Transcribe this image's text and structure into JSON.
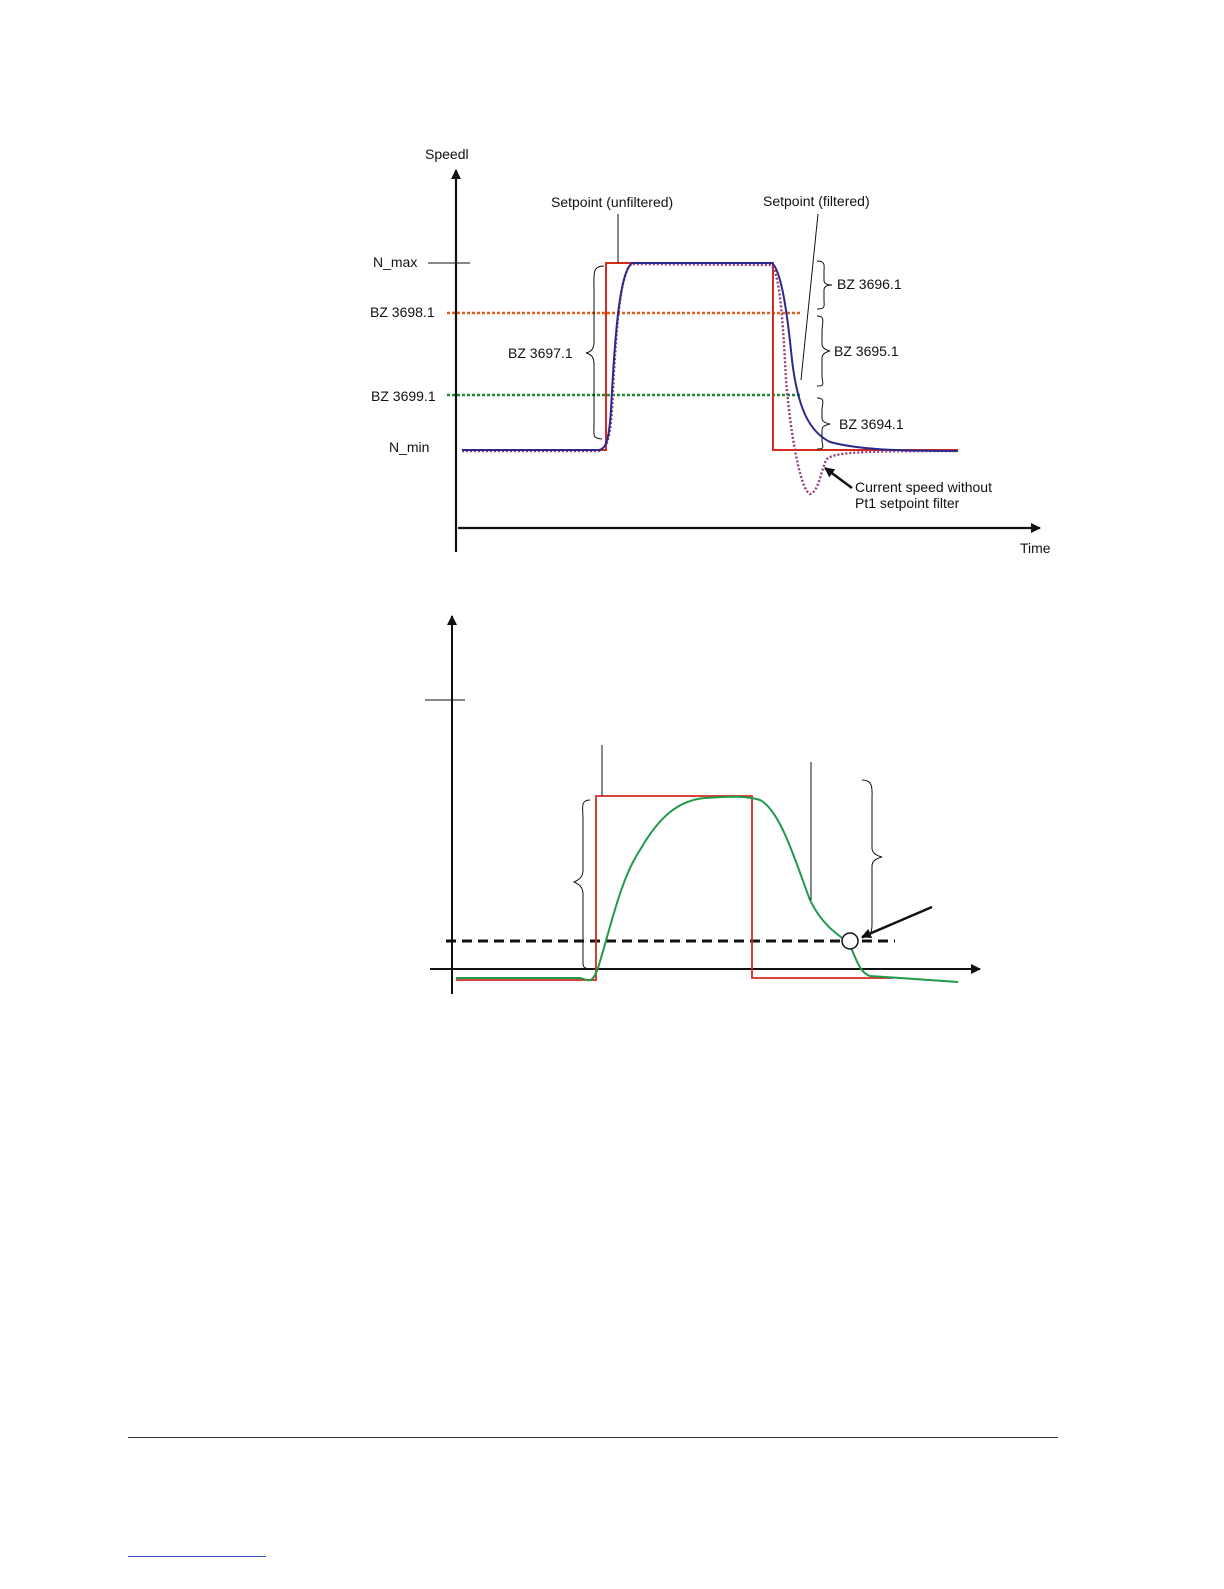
{
  "colors": {
    "axis": "#111111",
    "setpoint_unfiltered": "#d62a1e",
    "setpoint_filtered": "#2b2a8c",
    "speed_without_filter": "#9a3a7a",
    "bz3698_line": "#e0601a",
    "bz3699_line": "#1e8a3a",
    "speed_curve_lower": "#1f9a4a",
    "threshold_dashed": "#111111"
  },
  "upper_diagram": {
    "y_axis_label": "Speedl",
    "x_axis_label": "Time",
    "level_labels": {
      "n_max": "N_max",
      "n_min": "N_min",
      "bz3698": "BZ 3698.1",
      "bz3699": "BZ 3699.1"
    },
    "callouts": {
      "setpoint_unfiltered": "Setpoint (unfiltered)",
      "setpoint_filtered": "Setpoint (filtered)",
      "speed_without_filter_line1": "Current speed without",
      "speed_without_filter_line2": "Pt1 setpoint filter"
    },
    "braces": {
      "bz3697": "BZ 3697.1",
      "bz3696": "BZ 3696.1",
      "bz3695": "BZ 3695.1",
      "bz3694": "BZ 3694.1"
    }
  },
  "lower_diagram": {
    "icons": {
      "threshold_marker": "circle-marker-icon",
      "pointer": "arrow-icon"
    }
  }
}
